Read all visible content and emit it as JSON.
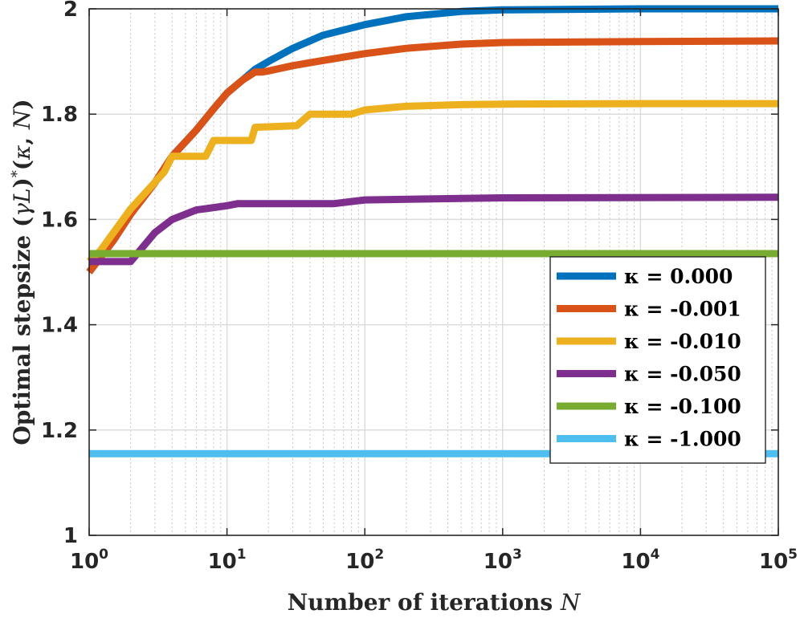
{
  "chart_data": {
    "type": "line",
    "xscale": "log",
    "xlim": [
      1,
      100000
    ],
    "ylim": [
      1,
      2
    ],
    "grid": true,
    "minor_grid": true,
    "xlabel": "Number of iterations N",
    "ylabel": "Optimal stepsize (γL)*(κ, N)",
    "x_ticks": [
      {
        "base": "10",
        "exp": "0"
      },
      {
        "base": "10",
        "exp": "1"
      },
      {
        "base": "10",
        "exp": "2"
      },
      {
        "base": "10",
        "exp": "3"
      },
      {
        "base": "10",
        "exp": "4"
      },
      {
        "base": "10",
        "exp": "5"
      }
    ],
    "y_ticks": [
      "1",
      "1.2",
      "1.4",
      "1.6",
      "1.8",
      "2"
    ],
    "legend_placement": "right-middle",
    "series": [
      {
        "name": "κ = 0.000",
        "color": "#0072BD",
        "x": [
          1,
          1.5,
          2,
          3,
          4,
          6,
          8,
          10,
          13,
          16,
          20,
          30,
          50,
          100,
          200,
          500,
          1000,
          10000,
          100000
        ],
        "y": [
          1.5,
          1.56,
          1.61,
          1.67,
          1.72,
          1.77,
          1.81,
          1.84,
          1.865,
          1.885,
          1.9,
          1.925,
          1.95,
          1.97,
          1.985,
          1.995,
          1.998,
          2.0,
          2.0
        ]
      },
      {
        "name": "κ = -0.001",
        "color": "#D95319",
        "x": [
          1,
          1.5,
          2,
          3,
          4,
          6,
          8,
          10,
          13,
          16,
          18,
          20,
          30,
          50,
          100,
          200,
          500,
          1000,
          10000,
          100000
        ],
        "y": [
          1.5,
          1.56,
          1.61,
          1.67,
          1.72,
          1.77,
          1.81,
          1.84,
          1.865,
          1.88,
          1.88,
          1.882,
          1.892,
          1.902,
          1.915,
          1.925,
          1.933,
          1.936,
          1.938,
          1.939
        ]
      },
      {
        "name": "κ = -0.010",
        "color": "#EDB120",
        "x": [
          1,
          1.2,
          2,
          3.5,
          4,
          7,
          8,
          15,
          16,
          32,
          40,
          80,
          100,
          200,
          500,
          1000,
          10000,
          100000
        ],
        "y": [
          1.52,
          1.54,
          1.62,
          1.69,
          1.72,
          1.72,
          1.75,
          1.75,
          1.775,
          1.778,
          1.8,
          1.8,
          1.808,
          1.815,
          1.818,
          1.819,
          1.82,
          1.82
        ]
      },
      {
        "name": "κ = -0.050",
        "color": "#7E2F8E",
        "x": [
          1,
          2,
          3,
          4,
          6,
          10,
          12,
          60,
          100,
          500,
          1000,
          100000
        ],
        "y": [
          1.52,
          1.52,
          1.575,
          1.6,
          1.618,
          1.626,
          1.63,
          1.63,
          1.637,
          1.64,
          1.641,
          1.642
        ]
      },
      {
        "name": "κ = -0.100",
        "color": "#77AC30",
        "x": [
          1,
          100000
        ],
        "y": [
          1.535,
          1.535
        ]
      },
      {
        "name": "κ = -1.000",
        "color": "#4DBEEE",
        "x": [
          1,
          100000
        ],
        "y": [
          1.155,
          1.155
        ]
      }
    ]
  }
}
